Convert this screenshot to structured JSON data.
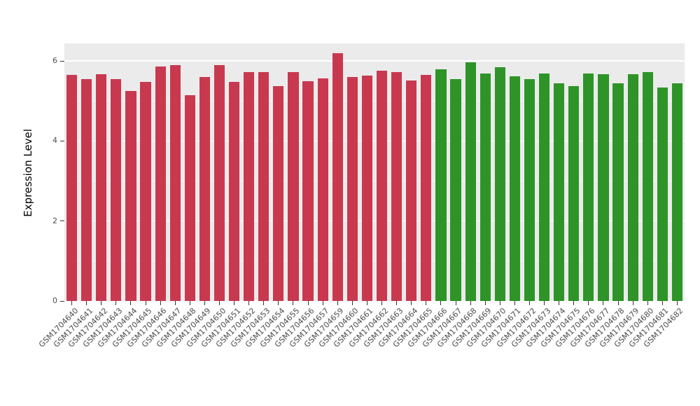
{
  "chart_data": {
    "type": "bar",
    "title": "",
    "xlabel": "",
    "ylabel": "Expression Level",
    "ylim": [
      0,
      6.44
    ],
    "yticks": [
      0,
      2,
      4,
      6
    ],
    "yticks_minor": [
      1,
      3,
      5
    ],
    "grid": "on",
    "legend": "none",
    "panel_bg": "#ebebeb",
    "grid_major_color": "#ffffff",
    "grid_minor_color": "#f6f6f6",
    "group_split_index": 25,
    "colors": {
      "group1": "#c8394f",
      "group2": "#2e9428"
    },
    "categories": [
      "GSM1704640",
      "GSM1704641",
      "GSM1704642",
      "GSM1704643",
      "GSM1704644",
      "GSM1704645",
      "GSM1704646",
      "GSM1704647",
      "GSM1704648",
      "GSM1704649",
      "GSM1704650",
      "GSM1704651",
      "GSM1704652",
      "GSM1704653",
      "GSM1704654",
      "GSM1704655",
      "GSM1704656",
      "GSM1704657",
      "GSM1704659",
      "GSM1704660",
      "GSM1704661",
      "GSM1704662",
      "GSM1704663",
      "GSM1704664",
      "GSM1704665",
      "GSM1704666",
      "GSM1704667",
      "GSM1704668",
      "GSM1704669",
      "GSM1704670",
      "GSM1704671",
      "GSM1704672",
      "GSM1704673",
      "GSM1704674",
      "GSM1704675",
      "GSM1704676",
      "GSM1704677",
      "GSM1704678",
      "GSM1704679",
      "GSM1704680",
      "GSM1704681",
      "GSM1704682"
    ],
    "values": [
      5.65,
      5.55,
      5.67,
      5.55,
      5.25,
      5.47,
      5.87,
      5.9,
      5.15,
      5.6,
      5.9,
      5.48,
      5.72,
      5.73,
      5.38,
      5.73,
      5.5,
      5.57,
      6.2,
      5.6,
      5.63,
      5.75,
      5.72,
      5.52,
      5.65,
      5.8,
      5.55,
      5.97,
      5.68,
      5.85,
      5.62,
      5.55,
      5.68,
      5.45,
      5.37,
      5.68,
      5.67,
      5.45,
      5.67,
      5.73,
      5.33,
      5.45
    ]
  }
}
